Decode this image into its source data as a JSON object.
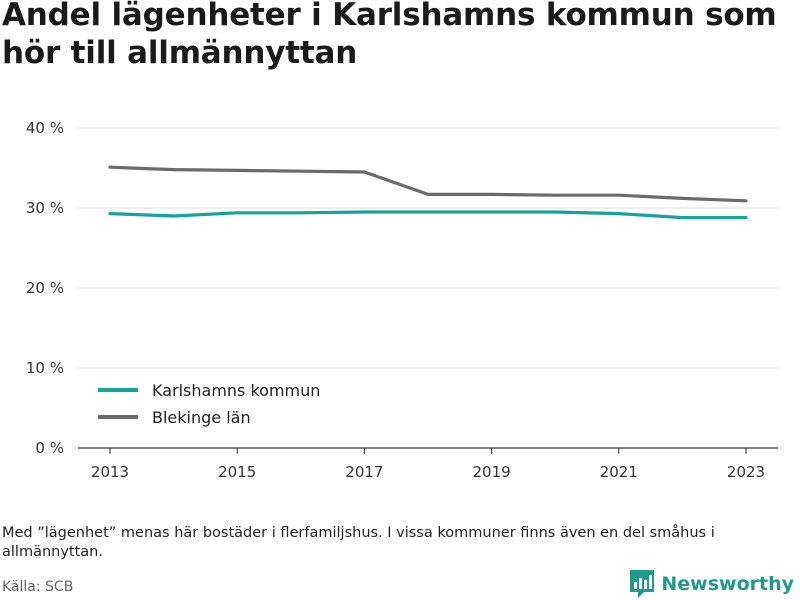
{
  "title": "Andel lägenheter i Karlshamns kommun som hör till allmännyttan",
  "note": "Med ”lägenhet” menas här bostäder i flerfamiljshus. I vissa kommuner finns även en del småhus i allmännyttan.",
  "source": "Källa: SCB",
  "brand": "Newsworthy",
  "colors": {
    "karlshamn": "#16a398",
    "blekinge": "#6b6b6b",
    "grid": "#dddddd",
    "axis": "#333333",
    "brand": "#1e9b8a"
  },
  "chart_data": {
    "type": "line",
    "x": [
      2013,
      2014,
      2015,
      2016,
      2017,
      2018,
      2019,
      2020,
      2021,
      2022,
      2023
    ],
    "ylim": [
      0,
      40
    ],
    "yticks": [
      0,
      10,
      20,
      30,
      40
    ],
    "ytick_labels": [
      "0 %",
      "10 %",
      "20 %",
      "30 %",
      "40 %"
    ],
    "xticks": [
      2013,
      2015,
      2017,
      2019,
      2021,
      2023
    ],
    "xtick_labels": [
      "2013",
      "2015",
      "2017",
      "2019",
      "2021",
      "2023"
    ],
    "grid": true,
    "legend_position": "bottom-left",
    "series": [
      {
        "name": "Karlshamns kommun",
        "color": "#16a398",
        "values": [
          29.3,
          29.0,
          29.4,
          29.4,
          29.5,
          29.5,
          29.5,
          29.5,
          29.3,
          28.8,
          28.8
        ]
      },
      {
        "name": "Blekinge län",
        "color": "#6b6b6b",
        "values": [
          35.1,
          34.8,
          34.7,
          34.6,
          34.5,
          31.7,
          31.7,
          31.6,
          31.6,
          31.2,
          30.9
        ]
      }
    ]
  }
}
